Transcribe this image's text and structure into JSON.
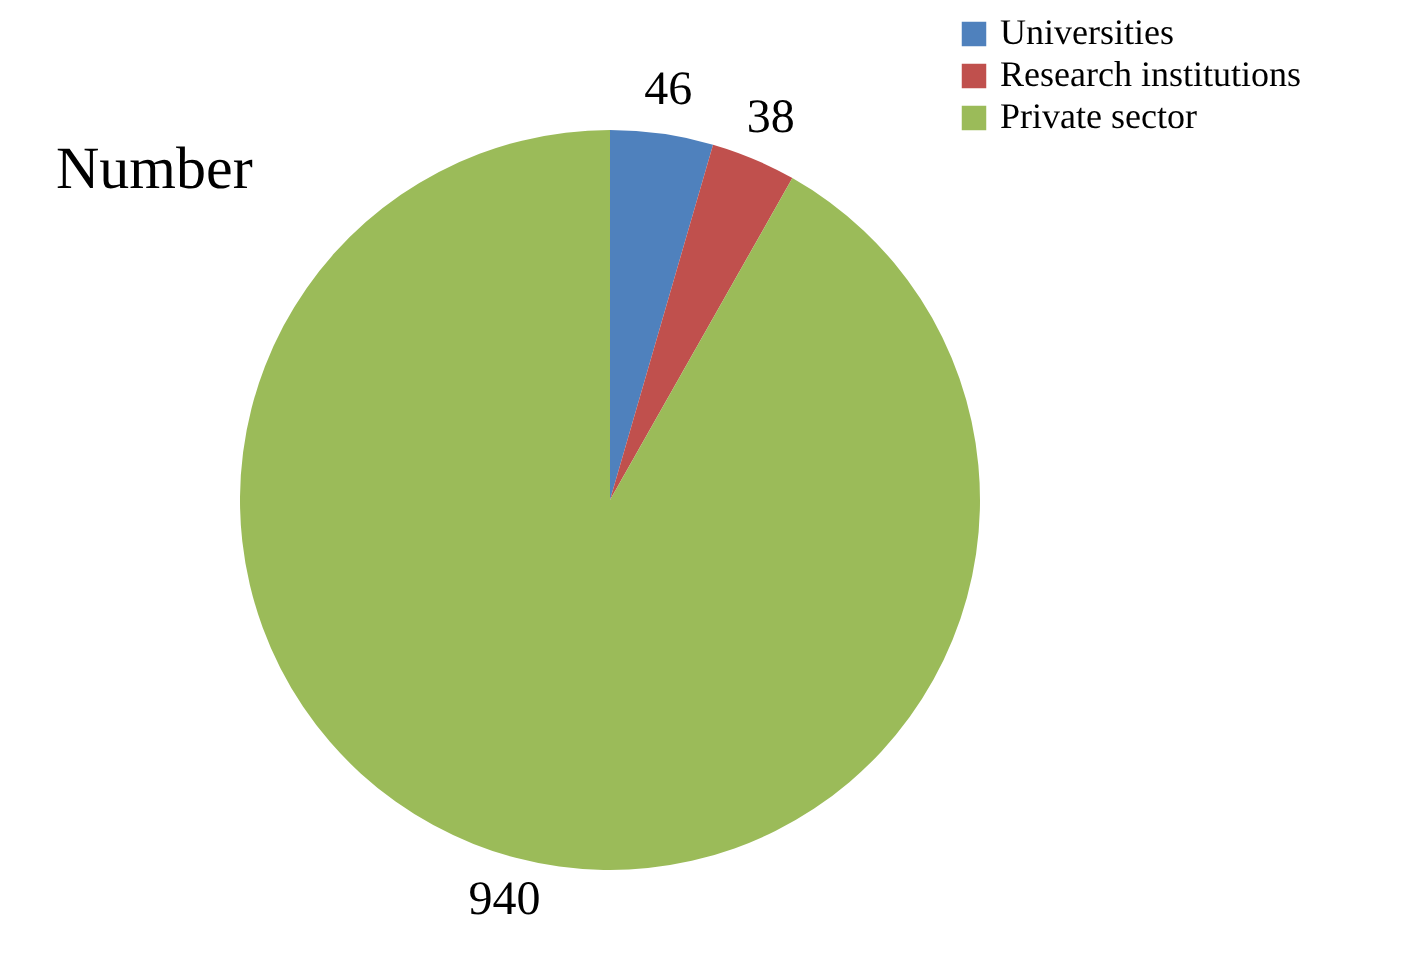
{
  "chart_data": {
    "type": "pie",
    "title": "Number",
    "categories": [
      "Universities",
      "Research institutions",
      "Private sector"
    ],
    "values": [
      46,
      38,
      940
    ],
    "colors": [
      "#4f81bd",
      "#c0504d",
      "#9bbb59"
    ],
    "data_labels": true,
    "legend": "top right"
  }
}
